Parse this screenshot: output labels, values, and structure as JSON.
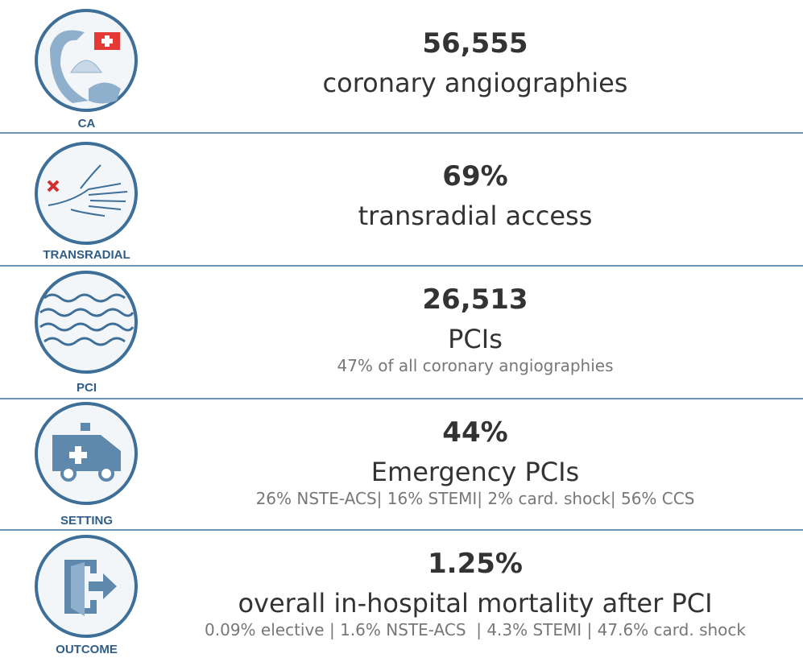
{
  "rows": [
    {
      "label": "CA",
      "number": "56,555",
      "description": "coronary angiographies"
    },
    {
      "label": "TRANSRADIAL",
      "number": "69%",
      "description": "transradial access"
    },
    {
      "label": "PCI",
      "number": "26,513",
      "description": "PCIs",
      "detail": "47% of all coronary angiographies"
    },
    {
      "label": "SETTING",
      "number": "44%",
      "description": "Emergency PCIs",
      "detail": "26% NSTE-ACS| 16% STEMI| 2% card. shock| 56% CCS"
    },
    {
      "label": "OUTCOME",
      "number": "1.25%",
      "description": "overall in-hospital mortality after PCI",
      "detail": "0.09% elective | 1.6% NSTE-ACS  | 4.3% STEMI | 47.6% card. shock"
    }
  ]
}
